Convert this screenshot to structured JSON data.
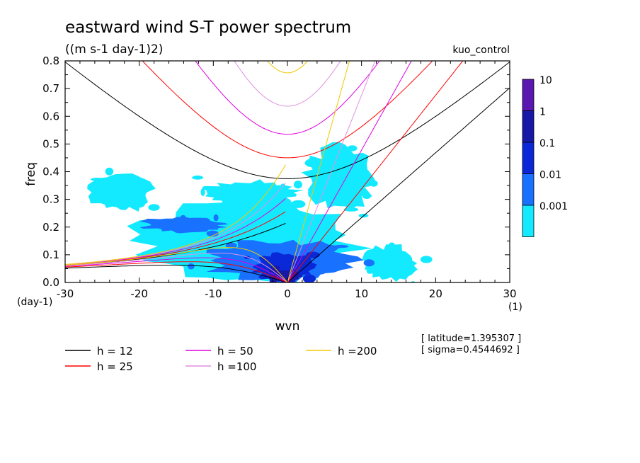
{
  "chart_data": {
    "type": "heatmap",
    "title": "eastward wind S-T power spectrum",
    "subtitle": "((m s-1 day-1)2)",
    "run_label": "kuo_control",
    "xlabel": "wvn",
    "ylabel": "freq",
    "x_unit": "(1)",
    "y_unit": "(day-1)",
    "xlim": [
      -30,
      30
    ],
    "ylim": [
      0,
      0.8
    ],
    "x_ticks": [
      "-30",
      "-20",
      "-10",
      "0",
      "10",
      "20",
      "30"
    ],
    "y_ticks": [
      "0.0",
      "0.1",
      "0.2",
      "0.3",
      "0.4",
      "0.5",
      "0.6",
      "0.7",
      "0.8"
    ],
    "colorbar": {
      "labels": [
        "10",
        "1",
        "0.1",
        "0.01",
        "0.001"
      ],
      "colors": [
        "#5a18b0",
        "#1818a8",
        "#0a28d8",
        "#1872ff",
        "#14eaff"
      ]
    },
    "power_levels": [
      {
        "level": "0.001",
        "color": "#14eaff",
        "regions": [
          {
            "wvn": [
              -22,
              11
            ],
            "freq": [
              0.0,
              0.3
            ]
          },
          {
            "wvn": [
              -12,
              2
            ],
            "freq": [
              0.28,
              0.37
            ]
          },
          {
            "wvn": [
              2,
              12
            ],
            "freq": [
              0.25,
              0.5
            ]
          },
          {
            "wvn": [
              10,
              18
            ],
            "freq": [
              0.0,
              0.14
            ]
          },
          {
            "wvn": [
              -27,
              -18
            ],
            "freq": [
              0.25,
              0.4
            ]
          }
        ]
      },
      {
        "level": "0.01",
        "color": "#1872ff",
        "regions": [
          {
            "wvn": [
              -12,
              10
            ],
            "freq": [
              0.0,
              0.16
            ]
          },
          {
            "wvn": [
              -20,
              -8
            ],
            "freq": [
              0.18,
              0.24
            ]
          }
        ]
      },
      {
        "level": "0.1",
        "color": "#0a28d8",
        "regions": [
          {
            "wvn": [
              -5,
              4
            ],
            "freq": [
              0.0,
              0.11
            ]
          }
        ]
      },
      {
        "level": "1",
        "color": "#1818a8",
        "regions": [
          {
            "wvn": [
              -2,
              2
            ],
            "freq": [
              0.0,
              0.05
            ]
          }
        ]
      }
    ],
    "dispersion_curves": [
      {
        "name": "h = 12",
        "h": 12,
        "color": "#000000"
      },
      {
        "name": "h = 25",
        "h": 25,
        "color": "#ff0000"
      },
      {
        "name": "h = 50",
        "h": 50,
        "color": "#e000e0"
      },
      {
        "name": "h =100",
        "h": 100,
        "color": "#e090e0"
      },
      {
        "name": "h =200",
        "h": 200,
        "color": "#f0c800"
      }
    ],
    "info_lines": [
      "[ latitude=1.395307 ]",
      "[ sigma=0.4544692 ]"
    ]
  }
}
